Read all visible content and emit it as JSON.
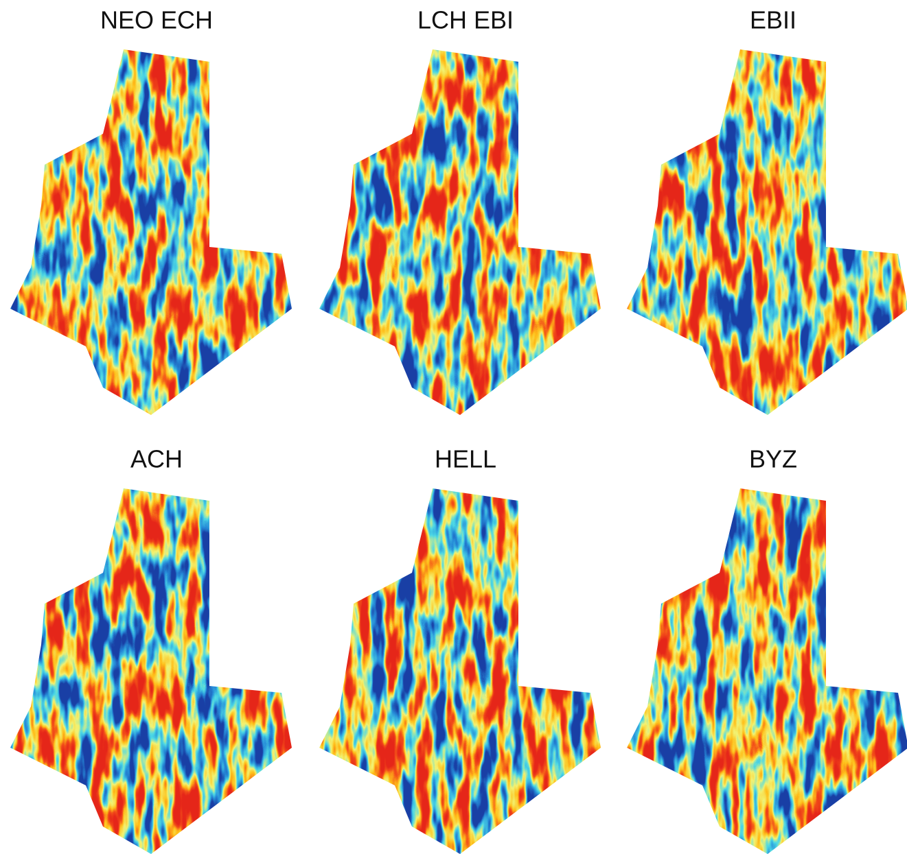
{
  "panels": [
    {
      "title": "NEO ECH"
    },
    {
      "title": "LCH EBI"
    },
    {
      "title": "EBII"
    },
    {
      "title": "ACH"
    },
    {
      "title": "HELL"
    },
    {
      "title": "BYZ"
    }
  ]
}
